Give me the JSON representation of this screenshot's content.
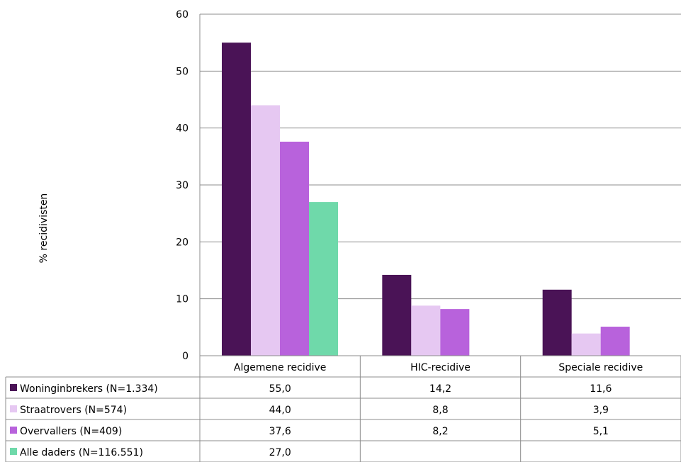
{
  "chart_data": {
    "type": "bar",
    "title": "",
    "xlabel": "",
    "ylabel": "% recidivisten",
    "ylim": [
      0,
      60
    ],
    "yticks": [
      0,
      10,
      20,
      30,
      40,
      50,
      60
    ],
    "grid": true,
    "legend_placement": "data-table",
    "categories": [
      "Algemene recidive",
      "HIC-recidive",
      "Speciale recidive"
    ],
    "series": [
      {
        "name": "Woninginbrekers (N=1.334)",
        "color": "#4a1356",
        "values": [
          55.0,
          14.2,
          11.6
        ],
        "labels": [
          "55,0",
          "14,2",
          "11,6"
        ]
      },
      {
        "name": "Straatrovers (N=574)",
        "color": "#e6c8f2",
        "values": [
          44.0,
          8.8,
          3.9
        ],
        "labels": [
          "44,0",
          "8,8",
          "3,9"
        ]
      },
      {
        "name": "Overvallers (N=409)",
        "color": "#b862dc",
        "values": [
          37.6,
          8.2,
          5.1
        ],
        "labels": [
          "37,6",
          "8,2",
          "5,1"
        ]
      },
      {
        "name": "Alle daders (N=116.551)",
        "color": "#6fd9aa",
        "values": [
          27.0,
          null,
          null
        ],
        "labels": [
          "27,0",
          "",
          ""
        ]
      }
    ]
  }
}
